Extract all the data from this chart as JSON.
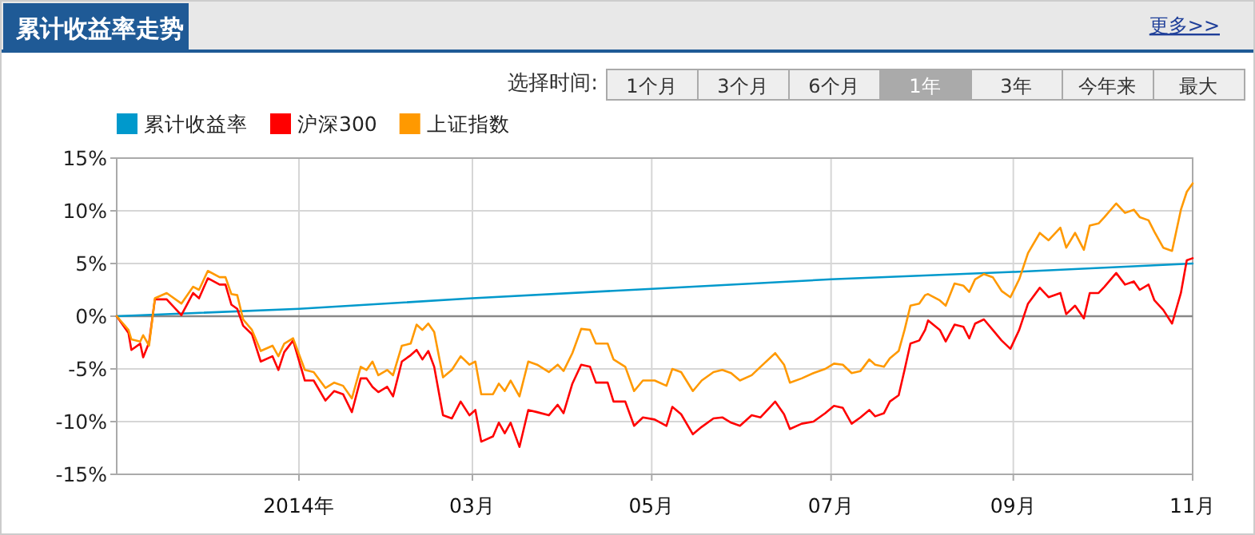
{
  "chart_data": {
    "type": "line",
    "title": "累计收益率走势",
    "annotations": [
      "更多>>",
      "选择时间:",
      "1个月",
      "3个月",
      "6个月",
      "1年",
      "3年",
      "今年来",
      "最大"
    ],
    "xlim": [
      "2013-10-31",
      "2014-11-01"
    ],
    "xticks": [
      {
        "value": "2014-01-01",
        "label": "2014年"
      },
      {
        "value": "2014-03-01",
        "label": "03月"
      },
      {
        "value": "2014-05-01",
        "label": "05月"
      },
      {
        "value": "2014-07-01",
        "label": "07月"
      },
      {
        "value": "2014-09-01",
        "label": "09月"
      },
      {
        "value": "2014-11-01",
        "label": "11月"
      }
    ],
    "ylim": [
      -15,
      15
    ],
    "yticks": [
      {
        "value": -15,
        "label": "-15%"
      },
      {
        "value": -10,
        "label": "-10%"
      },
      {
        "value": -5,
        "label": "-5%"
      },
      {
        "value": 0,
        "label": "0%"
      },
      {
        "value": 5,
        "label": "5%"
      },
      {
        "value": 10,
        "label": "10%"
      },
      {
        "value": 15,
        "label": "15%"
      }
    ],
    "grid": true,
    "legend": "top left",
    "ref_lines": [
      {
        "axis": "y",
        "value": 0,
        "color": "#888888"
      }
    ],
    "series": [
      {
        "name": "累计收益率",
        "color": "#0099cc",
        "x": [
          "2013-10-31",
          "2014-01-01",
          "2014-03-01",
          "2014-05-01",
          "2014-07-01",
          "2014-09-01",
          "2014-11-01"
        ],
        "values": [
          0,
          0.7,
          1.7,
          2.6,
          3.5,
          4.2,
          5.0
        ]
      },
      {
        "name": "沪深300",
        "color": "#ff0000",
        "x": [
          "2013-10-31",
          "2013-11-04",
          "2013-11-05",
          "2013-11-08",
          "2013-11-09",
          "2013-11-11",
          "2013-11-13",
          "2013-11-17",
          "2013-11-22",
          "2013-11-26",
          "2013-11-28",
          "2013-12-01",
          "2013-12-05",
          "2013-12-07",
          "2013-12-09",
          "2013-12-11",
          "2013-12-13",
          "2013-12-16",
          "2013-12-19",
          "2013-12-23",
          "2013-12-25",
          "2013-12-27",
          "2013-12-30",
          "2014-01-03",
          "2014-01-06",
          "2014-01-10",
          "2014-01-13",
          "2014-01-16",
          "2014-01-19",
          "2014-01-22",
          "2014-01-24",
          "2014-01-26",
          "2014-01-28",
          "2014-01-31",
          "2014-02-02",
          "2014-02-05",
          "2014-02-08",
          "2014-02-10",
          "2014-02-12",
          "2014-02-14",
          "2014-02-16",
          "2014-02-19",
          "2014-02-22",
          "2014-02-25",
          "2014-02-28",
          "2014-03-02",
          "2014-03-04",
          "2014-03-08",
          "2014-03-10",
          "2014-03-12",
          "2014-03-14",
          "2014-03-17",
          "2014-03-20",
          "2014-03-23",
          "2014-03-27",
          "2014-03-30",
          "2014-04-01",
          "2014-04-04",
          "2014-04-07",
          "2014-04-10",
          "2014-04-12",
          "2014-04-16",
          "2014-04-18",
          "2014-04-22",
          "2014-04-25",
          "2014-04-28",
          "2014-05-02",
          "2014-05-06",
          "2014-05-08",
          "2014-05-11",
          "2014-05-15",
          "2014-05-18",
          "2014-05-22",
          "2014-05-25",
          "2014-05-28",
          "2014-05-31",
          "2014-06-04",
          "2014-06-07",
          "2014-06-12",
          "2014-06-15",
          "2014-06-17",
          "2014-06-21",
          "2014-06-25",
          "2014-06-29",
          "2014-07-02",
          "2014-07-05",
          "2014-07-08",
          "2014-07-11",
          "2014-07-14",
          "2014-07-16",
          "2014-07-19",
          "2014-07-21",
          "2014-07-24",
          "2014-07-26",
          "2014-07-28",
          "2014-07-31",
          "2014-08-02",
          "2014-08-03",
          "2014-08-07",
          "2014-08-09",
          "2014-08-12",
          "2014-08-15",
          "2014-08-17",
          "2014-08-19",
          "2014-08-22",
          "2014-08-25",
          "2014-08-28",
          "2014-08-31",
          "2014-09-03",
          "2014-09-06",
          "2014-09-10",
          "2014-09-13",
          "2014-09-17",
          "2014-09-19",
          "2014-09-22",
          "2014-09-25",
          "2014-09-27",
          "2014-09-30",
          "2014-10-02",
          "2014-10-06",
          "2014-10-09",
          "2014-10-12",
          "2014-10-14",
          "2014-10-17",
          "2014-10-19",
          "2014-10-22",
          "2014-10-25",
          "2014-10-28",
          "2014-10-30",
          "2014-11-01"
        ],
        "values": [
          0,
          -1.6,
          -3.2,
          -2.6,
          -3.9,
          -2.5,
          1.6,
          1.6,
          0.1,
          2.2,
          1.7,
          3.6,
          3.0,
          3.0,
          1.1,
          0.7,
          -0.9,
          -1.7,
          -4.3,
          -3.8,
          -5.1,
          -3.4,
          -2.3,
          -6.1,
          -6.1,
          -8.0,
          -7.1,
          -7.4,
          -9.1,
          -5.9,
          -5.9,
          -6.7,
          -7.2,
          -6.7,
          -7.6,
          -4.3,
          -3.7,
          -3.2,
          -4.1,
          -3.3,
          -4.8,
          -9.4,
          -9.7,
          -8.1,
          -9.4,
          -8.9,
          -11.9,
          -11.4,
          -10.1,
          -11.1,
          -10.1,
          -12.4,
          -8.9,
          -9.1,
          -9.4,
          -8.4,
          -9.2,
          -6.4,
          -4.6,
          -4.8,
          -6.3,
          -6.3,
          -8.1,
          -8.1,
          -10.4,
          -9.6,
          -9.8,
          -10.4,
          -8.6,
          -9.3,
          -11.2,
          -10.5,
          -9.7,
          -9.6,
          -10.1,
          -10.4,
          -9.4,
          -9.6,
          -8.1,
          -9.3,
          -10.7,
          -10.2,
          -10.0,
          -9.2,
          -8.5,
          -8.7,
          -10.2,
          -9.6,
          -8.9,
          -9.5,
          -9.2,
          -8.1,
          -7.5,
          -5.1,
          -2.6,
          -2.3,
          -1.3,
          -0.4,
          -1.3,
          -2.4,
          -0.8,
          -1.0,
          -2.1,
          -0.7,
          -0.3,
          -1.3,
          -2.3,
          -3.1,
          -1.3,
          1.2,
          2.7,
          1.8,
          2.2,
          0.2,
          1.0,
          -0.2,
          2.2,
          2.2,
          2.8,
          4.1,
          3.0,
          3.3,
          2.5,
          3.0,
          1.5,
          0.6,
          -0.7,
          2.2,
          5.3,
          5.5
        ]
      },
      {
        "name": "上证指数",
        "color": "#ff9900",
        "x": [
          "2013-10-31",
          "2013-11-04",
          "2013-11-05",
          "2013-11-08",
          "2013-11-09",
          "2013-11-11",
          "2013-11-13",
          "2013-11-17",
          "2013-11-22",
          "2013-11-26",
          "2013-11-28",
          "2013-12-01",
          "2013-12-05",
          "2013-12-07",
          "2013-12-09",
          "2013-12-11",
          "2013-12-13",
          "2013-12-16",
          "2013-12-19",
          "2013-12-23",
          "2013-12-25",
          "2013-12-27",
          "2013-12-30",
          "2014-01-03",
          "2014-01-06",
          "2014-01-10",
          "2014-01-13",
          "2014-01-16",
          "2014-01-19",
          "2014-01-22",
          "2014-01-24",
          "2014-01-26",
          "2014-01-28",
          "2014-01-31",
          "2014-02-02",
          "2014-02-05",
          "2014-02-08",
          "2014-02-10",
          "2014-02-12",
          "2014-02-14",
          "2014-02-16",
          "2014-02-19",
          "2014-02-22",
          "2014-02-25",
          "2014-02-28",
          "2014-03-02",
          "2014-03-04",
          "2014-03-08",
          "2014-03-10",
          "2014-03-12",
          "2014-03-14",
          "2014-03-17",
          "2014-03-20",
          "2014-03-23",
          "2014-03-27",
          "2014-03-30",
          "2014-04-01",
          "2014-04-04",
          "2014-04-07",
          "2014-04-10",
          "2014-04-12",
          "2014-04-16",
          "2014-04-18",
          "2014-04-22",
          "2014-04-25",
          "2014-04-28",
          "2014-05-02",
          "2014-05-06",
          "2014-05-08",
          "2014-05-11",
          "2014-05-15",
          "2014-05-18",
          "2014-05-22",
          "2014-05-25",
          "2014-05-28",
          "2014-05-31",
          "2014-06-04",
          "2014-06-07",
          "2014-06-12",
          "2014-06-15",
          "2014-06-17",
          "2014-06-21",
          "2014-06-25",
          "2014-06-29",
          "2014-07-02",
          "2014-07-05",
          "2014-07-08",
          "2014-07-11",
          "2014-07-14",
          "2014-07-16",
          "2014-07-19",
          "2014-07-21",
          "2014-07-24",
          "2014-07-26",
          "2014-07-28",
          "2014-07-31",
          "2014-08-02",
          "2014-08-03",
          "2014-08-07",
          "2014-08-09",
          "2014-08-12",
          "2014-08-15",
          "2014-08-17",
          "2014-08-19",
          "2014-08-22",
          "2014-08-25",
          "2014-08-28",
          "2014-08-31",
          "2014-09-03",
          "2014-09-06",
          "2014-09-10",
          "2014-09-13",
          "2014-09-17",
          "2014-09-19",
          "2014-09-22",
          "2014-09-25",
          "2014-09-27",
          "2014-09-30",
          "2014-10-02",
          "2014-10-06",
          "2014-10-09",
          "2014-10-12",
          "2014-10-14",
          "2014-10-17",
          "2014-10-19",
          "2014-10-22",
          "2014-10-25",
          "2014-10-28",
          "2014-10-30",
          "2014-11-01"
        ],
        "values": [
          0,
          -1.3,
          -2.2,
          -2.4,
          -1.8,
          -2.8,
          1.7,
          2.2,
          1.2,
          2.8,
          2.5,
          4.3,
          3.7,
          3.7,
          2.1,
          2.0,
          -0.3,
          -1.3,
          -3.3,
          -2.8,
          -3.8,
          -2.6,
          -2.1,
          -5.1,
          -5.3,
          -6.8,
          -6.3,
          -6.6,
          -7.8,
          -4.8,
          -5.1,
          -4.3,
          -5.6,
          -5.1,
          -5.6,
          -2.8,
          -2.6,
          -0.8,
          -1.3,
          -0.7,
          -1.5,
          -5.8,
          -5.1,
          -3.8,
          -4.6,
          -4.3,
          -7.4,
          -7.4,
          -6.4,
          -7.1,
          -6.1,
          -7.6,
          -4.3,
          -4.6,
          -5.3,
          -4.6,
          -5.2,
          -3.5,
          -1.2,
          -1.3,
          -2.6,
          -2.6,
          -4.1,
          -4.8,
          -7.1,
          -6.1,
          -6.1,
          -6.6,
          -5.0,
          -5.3,
          -7.1,
          -6.1,
          -5.3,
          -5.1,
          -5.4,
          -6.1,
          -5.6,
          -4.8,
          -3.5,
          -4.6,
          -6.3,
          -5.9,
          -5.4,
          -5.0,
          -4.5,
          -4.6,
          -5.4,
          -5.2,
          -4.1,
          -4.6,
          -4.8,
          -4.0,
          -3.3,
          -1.3,
          1.0,
          1.2,
          2.0,
          2.1,
          1.5,
          1.0,
          3.1,
          2.9,
          2.3,
          3.5,
          4.0,
          3.7,
          2.4,
          1.8,
          3.5,
          6.0,
          7.9,
          7.2,
          8.4,
          6.5,
          7.9,
          6.3,
          8.6,
          8.8,
          9.4,
          10.7,
          9.8,
          10.1,
          9.4,
          9.1,
          8.0,
          6.5,
          6.2,
          10.1,
          11.8,
          12.6
        ]
      }
    ]
  }
}
